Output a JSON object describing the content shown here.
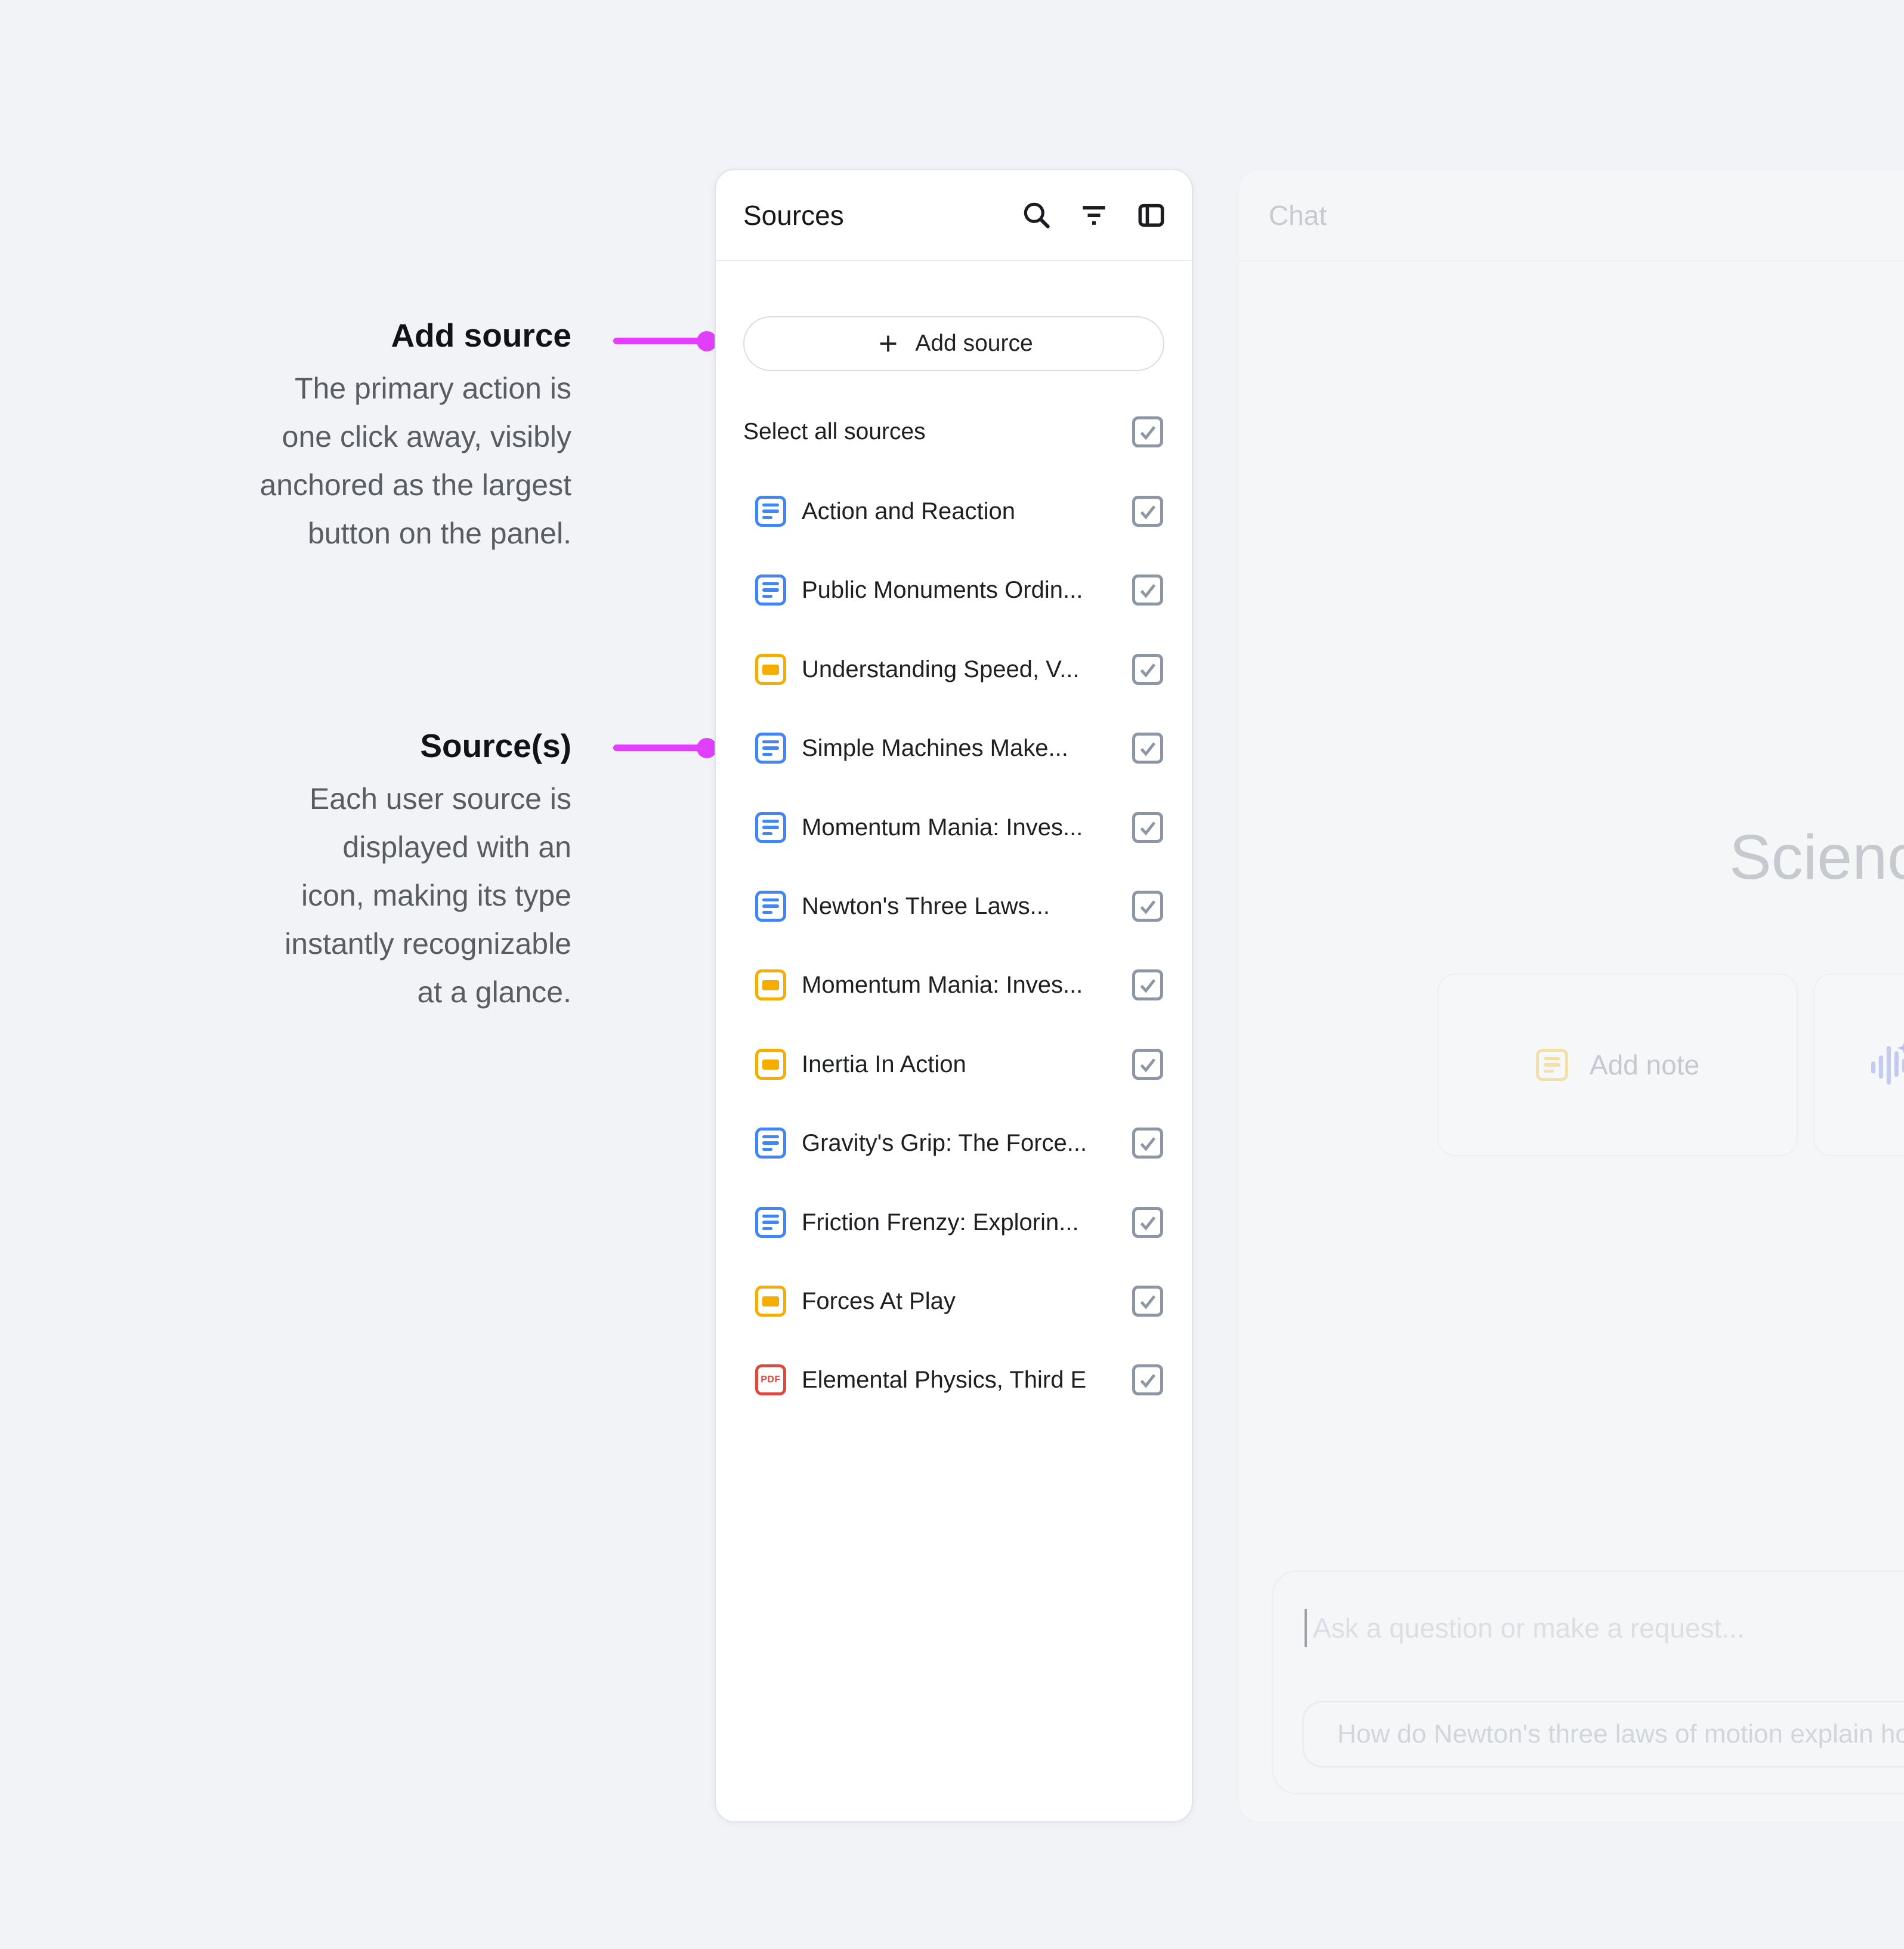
{
  "annotations": {
    "connector_color": "#e040fb",
    "add_source": {
      "title": "Add source",
      "body_lines": [
        "The primary action is",
        "one click away, visibly",
        "anchored as the largest",
        "button on the panel."
      ]
    },
    "sources": {
      "title": "Source(s)",
      "body_lines": [
        "Each user source is",
        "displayed with an",
        "icon, making its type",
        "instantly recognizable",
        "at a glance."
      ]
    }
  },
  "sources_panel": {
    "title": "Sources",
    "add_source_label": "Add source",
    "select_all_label": "Select all sources",
    "select_all_checked": true,
    "pdf_badge": "PDF",
    "type_colors": {
      "doc": "#4285f4",
      "slide": "#f6ad01",
      "pdf": "#e0483e"
    },
    "items": [
      {
        "title": "Action and Reaction",
        "type": "doc",
        "checked": true
      },
      {
        "title": "Public Monuments Ordin...",
        "type": "doc",
        "checked": true
      },
      {
        "title": "Understanding Speed, V...",
        "type": "slide",
        "checked": true
      },
      {
        "title": "Simple Machines Make...",
        "type": "doc",
        "checked": true
      },
      {
        "title": "Momentum Mania: Inves...",
        "type": "doc",
        "checked": true
      },
      {
        "title": "Newton's Three Laws...",
        "type": "doc",
        "checked": true
      },
      {
        "title": "Momentum Mania: Inves...",
        "type": "slide",
        "checked": true
      },
      {
        "title": "Inertia In Action",
        "type": "slide",
        "checked": true
      },
      {
        "title": "Gravity's Grip: The Force...",
        "type": "doc",
        "checked": true
      },
      {
        "title": "Friction Frenzy: Explorin...",
        "type": "doc",
        "checked": true
      },
      {
        "title": "Forces At Play",
        "type": "slide",
        "checked": true
      },
      {
        "title": "Elemental Physics, Third E",
        "type": "pdf",
        "checked": true
      }
    ]
  },
  "chat_panel": {
    "title": "Chat",
    "notebook_title": "Scienc",
    "add_note_label": "Add note",
    "input_placeholder": "Ask a question or make a request...",
    "suggestion": "How do Newton's three laws of motion explain how c"
  }
}
